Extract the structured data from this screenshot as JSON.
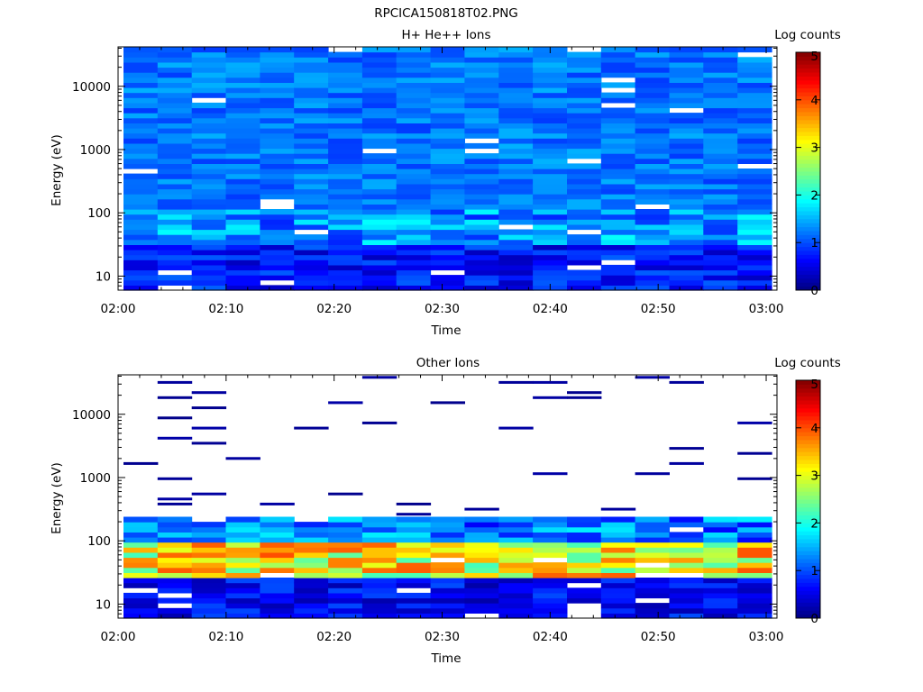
{
  "file_title": "RPCICA150818T02.PNG",
  "chart_data": [
    {
      "type": "heatmap",
      "title": "H+ He++ Ions",
      "xlabel": "Time",
      "ylabel": "Energy (eV)",
      "y_scale": "log",
      "ylim": [
        6,
        42000
      ],
      "x_range": [
        "02:00",
        "03:01"
      ],
      "x_ticks": [
        "02:00",
        "02:10",
        "02:20",
        "02:30",
        "02:40",
        "02:50",
        "03:00"
      ],
      "y_ticks": [
        "10",
        "100",
        "1000",
        "10000"
      ],
      "colorbar": {
        "label": "Log counts",
        "min": 0,
        "max": 5,
        "ticks": [
          "0",
          "1",
          "2",
          "3",
          "4",
          "5"
        ]
      },
      "grid": false
    },
    {
      "type": "heatmap",
      "title": "Other Ions",
      "xlabel": "Time",
      "ylabel": "Energy (eV)",
      "y_scale": "log",
      "ylim": [
        6,
        42000
      ],
      "x_range": [
        "02:00",
        "03:01"
      ],
      "x_ticks": [
        "02:00",
        "02:10",
        "02:20",
        "02:30",
        "02:40",
        "02:50",
        "03:00"
      ],
      "y_ticks": [
        "10",
        "100",
        "1000",
        "10000"
      ],
      "colorbar": {
        "label": "Log counts",
        "min": 0,
        "max": 5,
        "ticks": [
          "0",
          "1",
          "2",
          "3",
          "4",
          "5"
        ]
      },
      "grid": false
    }
  ]
}
